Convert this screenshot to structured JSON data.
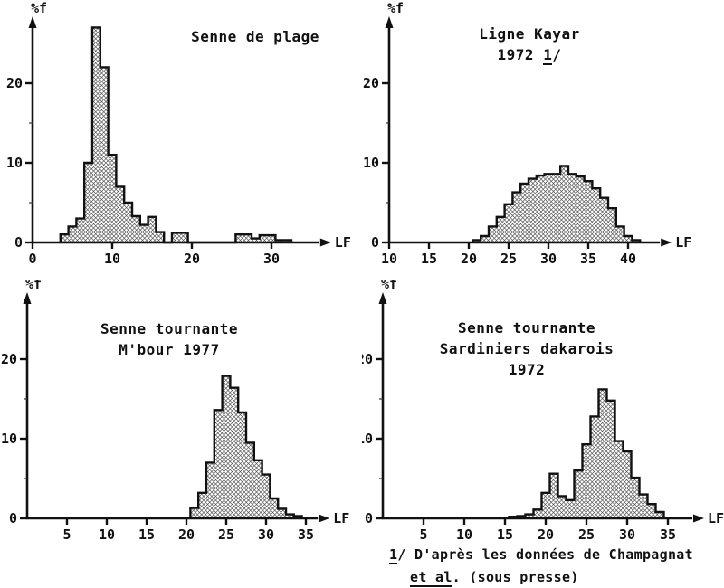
{
  "page": {
    "background": "#ffffff",
    "ink": "#111111",
    "hatch_color": "#555555"
  },
  "footnote": {
    "marker": "1",
    "marker_sep": "/ ",
    "line1": "D'après les données de Champagnat",
    "et_al": "et al",
    "line2_rest": ". (sous presse)"
  },
  "chart_data": [
    {
      "type": "bar",
      "title_lines": [
        "Senne de plage"
      ],
      "xlabel": "LF",
      "ylabel": "%f",
      "xlim": [
        0,
        36
      ],
      "ylim": [
        0,
        28
      ],
      "x_ticks": [
        0,
        10,
        20,
        30
      ],
      "y_ticks": [
        0,
        10,
        20
      ],
      "y_minor_ticks": [
        5,
        15
      ],
      "grid": "off",
      "bin_width": 1,
      "bins_start": 4,
      "values": [
        1,
        2,
        3,
        10,
        27,
        22,
        11,
        7,
        5,
        3.3,
        2.2,
        3.2,
        1.3,
        0,
        1.2,
        1.2,
        0,
        0,
        0,
        0,
        0,
        0,
        1,
        1,
        0.5,
        0.9,
        0.9,
        0.3,
        0.3
      ]
    },
    {
      "type": "bar",
      "title_lines": [
        "Ligne Kayar"
      ],
      "title_line2": {
        "pre": "1972 ",
        "underlined": "1",
        "post": "/"
      },
      "xlabel": "LF",
      "ylabel": "%f",
      "xlim": [
        10,
        44
      ],
      "ylim": [
        0,
        28
      ],
      "x_ticks": [
        10,
        15,
        20,
        25,
        30,
        35,
        40
      ],
      "y_ticks": [
        0,
        10,
        20
      ],
      "y_minor_ticks": [
        5,
        15
      ],
      "grid": "off",
      "bin_width": 1,
      "bins_start": 21,
      "values": [
        0.3,
        0.8,
        2,
        3.2,
        4.8,
        6.3,
        7.4,
        8,
        8.4,
        8.6,
        8.6,
        9.6,
        8.6,
        8.3,
        7.7,
        6.8,
        5.6,
        4.3,
        2,
        0.8,
        0.3
      ]
    },
    {
      "type": "bar",
      "title_lines": [
        "Senne tournante",
        "M'bour 1977"
      ],
      "xlabel": "LF",
      "ylabel": "%f",
      "xlim": [
        0,
        36.5
      ],
      "ylim": [
        0,
        28
      ],
      "x_ticks": [
        5,
        10,
        15,
        20,
        25,
        30,
        35
      ],
      "y_ticks": [
        0,
        10,
        20
      ],
      "y_minor_ticks": [
        5,
        15
      ],
      "grid": "off",
      "bin_width": 1,
      "bins_start": 21,
      "values": [
        1.3,
        3.2,
        7,
        13.6,
        17.9,
        16.4,
        13.3,
        9.5,
        7.3,
        5.5,
        2.5,
        1.2,
        0.5,
        0.3
      ]
    },
    {
      "type": "bar",
      "title_lines": [
        "Senne tournante",
        "Sardiniers dakarois",
        "1972"
      ],
      "xlabel": "LF",
      "ylabel": "%f",
      "xlim": [
        0,
        38
      ],
      "ylim": [
        0,
        28
      ],
      "x_ticks": [
        5,
        10,
        15,
        20,
        25,
        30,
        35
      ],
      "y_ticks": [
        0,
        10,
        20
      ],
      "y_minor_ticks": [
        5,
        15
      ],
      "grid": "off",
      "bin_width": 1,
      "bins_start": 16,
      "values": [
        0.2,
        0.3,
        0.5,
        1.1,
        3.2,
        5.6,
        2.8,
        2.3,
        6,
        9.3,
        12.8,
        16.2,
        14.8,
        9.7,
        8.4,
        5.1,
        3,
        1.8,
        0.8
      ]
    }
  ]
}
